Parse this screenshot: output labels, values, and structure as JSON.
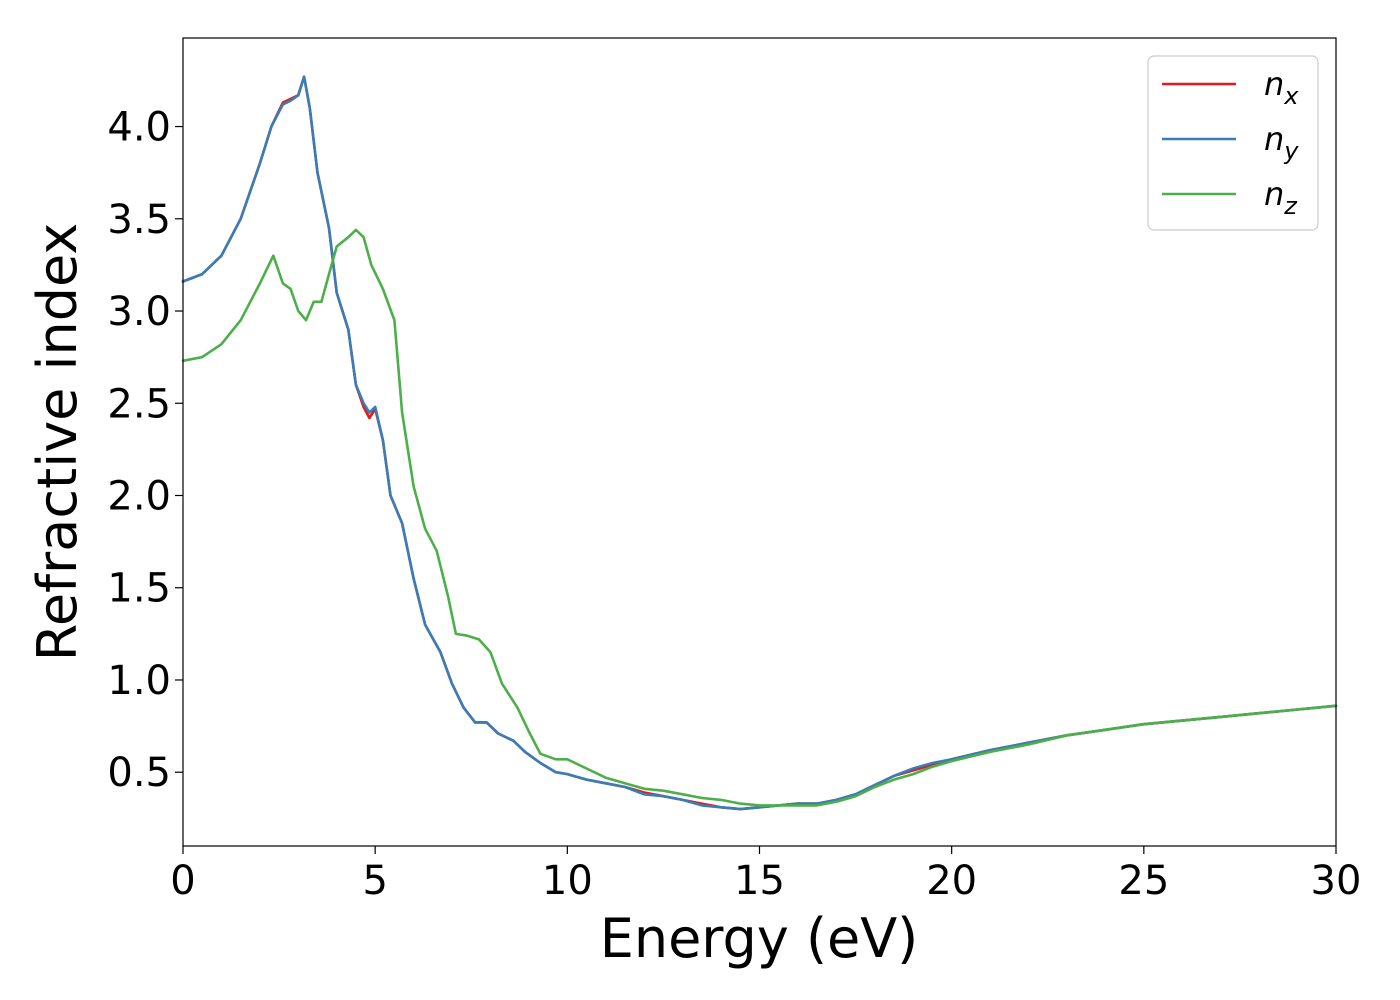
{
  "chart_data": {
    "type": "line",
    "xlabel": "Energy (eV)",
    "ylabel": "Refractive index",
    "xlim": [
      0,
      30
    ],
    "ylim": [
      0.1,
      4.48
    ],
    "xticks": [
      0,
      5,
      10,
      15,
      20,
      25,
      30
    ],
    "yticks": [
      0.5,
      1.0,
      1.5,
      2.0,
      2.5,
      3.0,
      3.5,
      4.0
    ],
    "grid": false,
    "legend_position": "top-right",
    "series": [
      {
        "name": "n_x",
        "label_base": "n",
        "label_sub": "x",
        "color": "#e41a1c",
        "points": [
          [
            0,
            3.16
          ],
          [
            0.5,
            3.2
          ],
          [
            1,
            3.3
          ],
          [
            1.5,
            3.5
          ],
          [
            2,
            3.8
          ],
          [
            2.3,
            4.0
          ],
          [
            2.6,
            4.13
          ],
          [
            2.8,
            4.15
          ],
          [
            3.0,
            4.17
          ],
          [
            3.15,
            4.27
          ],
          [
            3.3,
            4.1
          ],
          [
            3.5,
            3.75
          ],
          [
            3.8,
            3.45
          ],
          [
            4.0,
            3.1
          ],
          [
            4.3,
            2.9
          ],
          [
            4.5,
            2.6
          ],
          [
            4.7,
            2.48
          ],
          [
            4.85,
            2.42
          ],
          [
            5.0,
            2.47
          ],
          [
            5.2,
            2.3
          ],
          [
            5.4,
            2.0
          ],
          [
            5.7,
            1.85
          ],
          [
            6.0,
            1.55
          ],
          [
            6.3,
            1.3
          ],
          [
            6.7,
            1.15
          ],
          [
            7.0,
            0.98
          ],
          [
            7.3,
            0.85
          ],
          [
            7.6,
            0.77
          ],
          [
            7.9,
            0.77
          ],
          [
            8.2,
            0.71
          ],
          [
            8.6,
            0.67
          ],
          [
            8.9,
            0.61
          ],
          [
            9.3,
            0.55
          ],
          [
            9.7,
            0.5
          ],
          [
            10,
            0.49
          ],
          [
            10.5,
            0.46
          ],
          [
            11,
            0.44
          ],
          [
            11.5,
            0.42
          ],
          [
            12,
            0.39
          ],
          [
            12.5,
            0.37
          ],
          [
            13,
            0.35
          ],
          [
            13.5,
            0.33
          ],
          [
            14,
            0.31
          ],
          [
            14.5,
            0.3
          ],
          [
            15,
            0.31
          ],
          [
            15.5,
            0.32
          ],
          [
            16,
            0.33
          ],
          [
            16.5,
            0.33
          ],
          [
            17,
            0.35
          ],
          [
            17.5,
            0.38
          ],
          [
            18,
            0.43
          ],
          [
            18.5,
            0.48
          ],
          [
            19,
            0.51
          ],
          [
            19.5,
            0.54
          ],
          [
            20,
            0.57
          ],
          [
            21,
            0.62
          ],
          [
            22,
            0.66
          ],
          [
            23,
            0.7
          ],
          [
            24,
            0.73
          ],
          [
            25,
            0.76
          ],
          [
            26,
            0.78
          ],
          [
            27,
            0.8
          ],
          [
            28,
            0.82
          ],
          [
            29,
            0.84
          ],
          [
            30,
            0.86
          ]
        ]
      },
      {
        "name": "n_y",
        "label_base": "n",
        "label_sub": "y",
        "color": "#377eb8",
        "points": [
          [
            0,
            3.16
          ],
          [
            0.5,
            3.2
          ],
          [
            1,
            3.3
          ],
          [
            1.5,
            3.5
          ],
          [
            2,
            3.8
          ],
          [
            2.3,
            4.0
          ],
          [
            2.6,
            4.12
          ],
          [
            2.8,
            4.14
          ],
          [
            3.0,
            4.17
          ],
          [
            3.15,
            4.27
          ],
          [
            3.3,
            4.1
          ],
          [
            3.5,
            3.75
          ],
          [
            3.8,
            3.45
          ],
          [
            4.0,
            3.1
          ],
          [
            4.3,
            2.9
          ],
          [
            4.5,
            2.6
          ],
          [
            4.7,
            2.5
          ],
          [
            4.85,
            2.45
          ],
          [
            5.0,
            2.48
          ],
          [
            5.2,
            2.3
          ],
          [
            5.4,
            2.0
          ],
          [
            5.7,
            1.85
          ],
          [
            6.0,
            1.55
          ],
          [
            6.3,
            1.3
          ],
          [
            6.7,
            1.15
          ],
          [
            7.0,
            0.98
          ],
          [
            7.3,
            0.85
          ],
          [
            7.6,
            0.77
          ],
          [
            7.9,
            0.77
          ],
          [
            8.2,
            0.71
          ],
          [
            8.6,
            0.67
          ],
          [
            8.9,
            0.61
          ],
          [
            9.3,
            0.55
          ],
          [
            9.7,
            0.5
          ],
          [
            10,
            0.49
          ],
          [
            10.5,
            0.46
          ],
          [
            11,
            0.44
          ],
          [
            11.5,
            0.42
          ],
          [
            12,
            0.38
          ],
          [
            12.5,
            0.37
          ],
          [
            13,
            0.35
          ],
          [
            13.5,
            0.32
          ],
          [
            14,
            0.31
          ],
          [
            14.5,
            0.3
          ],
          [
            15,
            0.31
          ],
          [
            15.5,
            0.32
          ],
          [
            16,
            0.33
          ],
          [
            16.5,
            0.33
          ],
          [
            17,
            0.35
          ],
          [
            17.5,
            0.38
          ],
          [
            18,
            0.43
          ],
          [
            18.5,
            0.48
          ],
          [
            19,
            0.52
          ],
          [
            19.5,
            0.55
          ],
          [
            20,
            0.57
          ],
          [
            21,
            0.62
          ],
          [
            22,
            0.66
          ],
          [
            23,
            0.7
          ],
          [
            24,
            0.73
          ],
          [
            25,
            0.76
          ],
          [
            26,
            0.78
          ],
          [
            27,
            0.8
          ],
          [
            28,
            0.82
          ],
          [
            29,
            0.84
          ],
          [
            30,
            0.86
          ]
        ]
      },
      {
        "name": "n_z",
        "label_base": "n",
        "label_sub": "z",
        "color": "#4daf4a",
        "points": [
          [
            0,
            2.73
          ],
          [
            0.5,
            2.75
          ],
          [
            1,
            2.82
          ],
          [
            1.5,
            2.95
          ],
          [
            2,
            3.15
          ],
          [
            2.35,
            3.3
          ],
          [
            2.6,
            3.15
          ],
          [
            2.8,
            3.12
          ],
          [
            3.0,
            3.0
          ],
          [
            3.2,
            2.95
          ],
          [
            3.4,
            3.05
          ],
          [
            3.6,
            3.05
          ],
          [
            3.8,
            3.2
          ],
          [
            4.0,
            3.35
          ],
          [
            4.3,
            3.4
          ],
          [
            4.5,
            3.44
          ],
          [
            4.7,
            3.4
          ],
          [
            4.9,
            3.25
          ],
          [
            5.2,
            3.12
          ],
          [
            5.5,
            2.95
          ],
          [
            5.7,
            2.45
          ],
          [
            6.0,
            2.05
          ],
          [
            6.3,
            1.82
          ],
          [
            6.6,
            1.7
          ],
          [
            6.9,
            1.45
          ],
          [
            7.1,
            1.25
          ],
          [
            7.4,
            1.24
          ],
          [
            7.7,
            1.22
          ],
          [
            8.0,
            1.15
          ],
          [
            8.3,
            0.98
          ],
          [
            8.7,
            0.85
          ],
          [
            9.0,
            0.72
          ],
          [
            9.3,
            0.6
          ],
          [
            9.7,
            0.57
          ],
          [
            10,
            0.57
          ],
          [
            10.5,
            0.52
          ],
          [
            11,
            0.47
          ],
          [
            11.5,
            0.44
          ],
          [
            12,
            0.41
          ],
          [
            12.5,
            0.4
          ],
          [
            13,
            0.38
          ],
          [
            13.5,
            0.36
          ],
          [
            14,
            0.35
          ],
          [
            14.5,
            0.33
          ],
          [
            15,
            0.32
          ],
          [
            15.5,
            0.32
          ],
          [
            16,
            0.32
          ],
          [
            16.5,
            0.32
          ],
          [
            17,
            0.34
          ],
          [
            17.5,
            0.37
          ],
          [
            18,
            0.42
          ],
          [
            18.5,
            0.46
          ],
          [
            19,
            0.49
          ],
          [
            19.5,
            0.53
          ],
          [
            20,
            0.56
          ],
          [
            21,
            0.61
          ],
          [
            22,
            0.65
          ],
          [
            23,
            0.7
          ],
          [
            24,
            0.73
          ],
          [
            25,
            0.76
          ],
          [
            26,
            0.78
          ],
          [
            27,
            0.8
          ],
          [
            28,
            0.82
          ],
          [
            29,
            0.84
          ],
          [
            30,
            0.86
          ]
        ]
      }
    ]
  }
}
